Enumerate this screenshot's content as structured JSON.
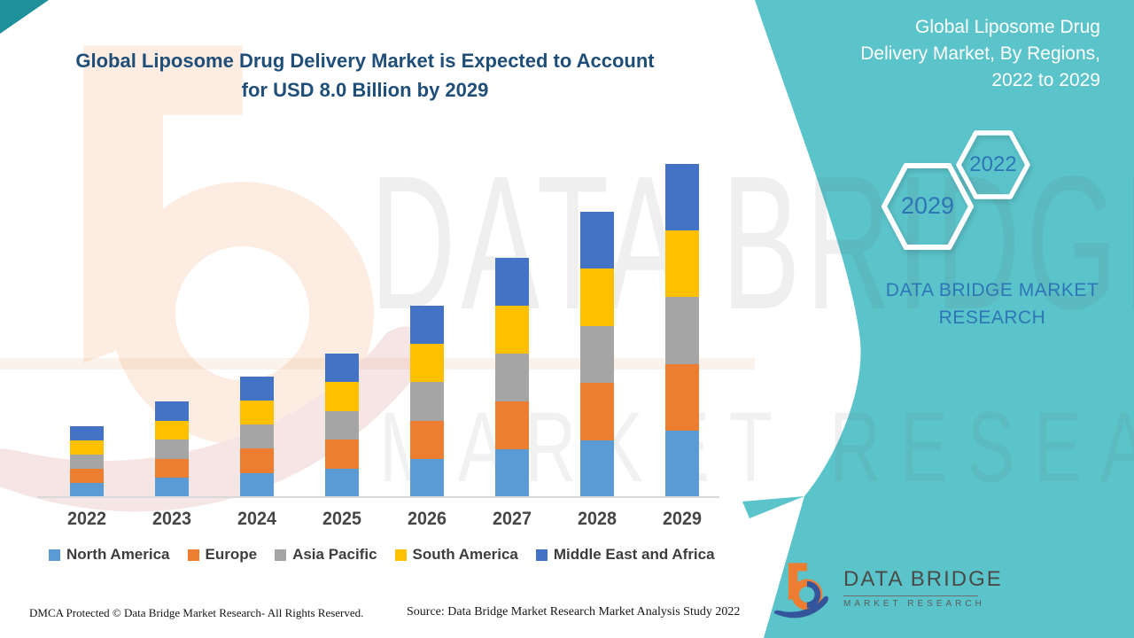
{
  "header": {
    "title_line1": "Global Liposome Drug Delivery Market is Expected to Account",
    "title_line2": "for USD 8.0 Billion by 2029",
    "panel_title_line1": "Global Liposome Drug",
    "panel_title_line2": "Delivery Market, By Regions,",
    "panel_title_line3": "2022 to 2029",
    "hexagon_year_start": "2022",
    "hexagon_year_end": "2029",
    "brand_line1": "DATA BRIDGE MARKET",
    "brand_line2": "RESEARCH"
  },
  "chart_data": {
    "type": "bar",
    "stacked": true,
    "title": "Global Liposome Drug Delivery Market is Expected to Account for USD 8.0 Billion by 2029",
    "unit": "USD Billion",
    "categories": [
      "2022",
      "2023",
      "2024",
      "2025",
      "2026",
      "2027",
      "2028",
      "2029"
    ],
    "series": [
      {
        "name": "North America",
        "color": "#5B9BD5",
        "values": [
          0.34,
          0.46,
          0.58,
          0.69,
          0.92,
          1.15,
          1.37,
          1.6
        ]
      },
      {
        "name": "Europe",
        "color": "#ED7D31",
        "values": [
          0.34,
          0.46,
          0.58,
          0.69,
          0.92,
          1.15,
          1.37,
          1.6
        ]
      },
      {
        "name": "Asia Pacific",
        "color": "#A5A5A5",
        "values": [
          0.34,
          0.46,
          0.58,
          0.69,
          0.92,
          1.15,
          1.37,
          1.6
        ]
      },
      {
        "name": "South America",
        "color": "#FFC000",
        "values": [
          0.34,
          0.46,
          0.58,
          0.69,
          0.92,
          1.15,
          1.37,
          1.6
        ]
      },
      {
        "name": "Middle East and Africa",
        "color": "#4472C4",
        "values": [
          0.34,
          0.46,
          0.58,
          0.69,
          0.92,
          1.15,
          1.37,
          1.6
        ]
      }
    ],
    "totals": [
      1.7,
      2.3,
      2.9,
      3.45,
      4.6,
      5.75,
      6.85,
      8.0
    ],
    "xlabel": "",
    "ylabel": "",
    "ylim": [
      0,
      8.5
    ],
    "y_axis_visible": false,
    "grid": false,
    "legend_position": "bottom"
  },
  "watermark": {
    "line1": "DATA BRIDGE",
    "line2": "MARKET RESEARCH"
  },
  "footer": {
    "dmca": "DMCA Protected © Data Bridge Market Research- All Rights Reserved.",
    "source": "Source: Data Bridge Market Research Market Analysis Study 2022",
    "logo_title": "DATA BRIDGE",
    "logo_subtitle": "MARKET RESEARCH"
  },
  "colors": {
    "teal": "#5BC4CA",
    "teal_dark": "#1E9099",
    "title_blue": "#1F4E79",
    "accent_blue": "#2E75B6",
    "axis_line": "#d9d9d9",
    "logo_orange": "#ED7D31",
    "logo_blue": "#34549B"
  }
}
